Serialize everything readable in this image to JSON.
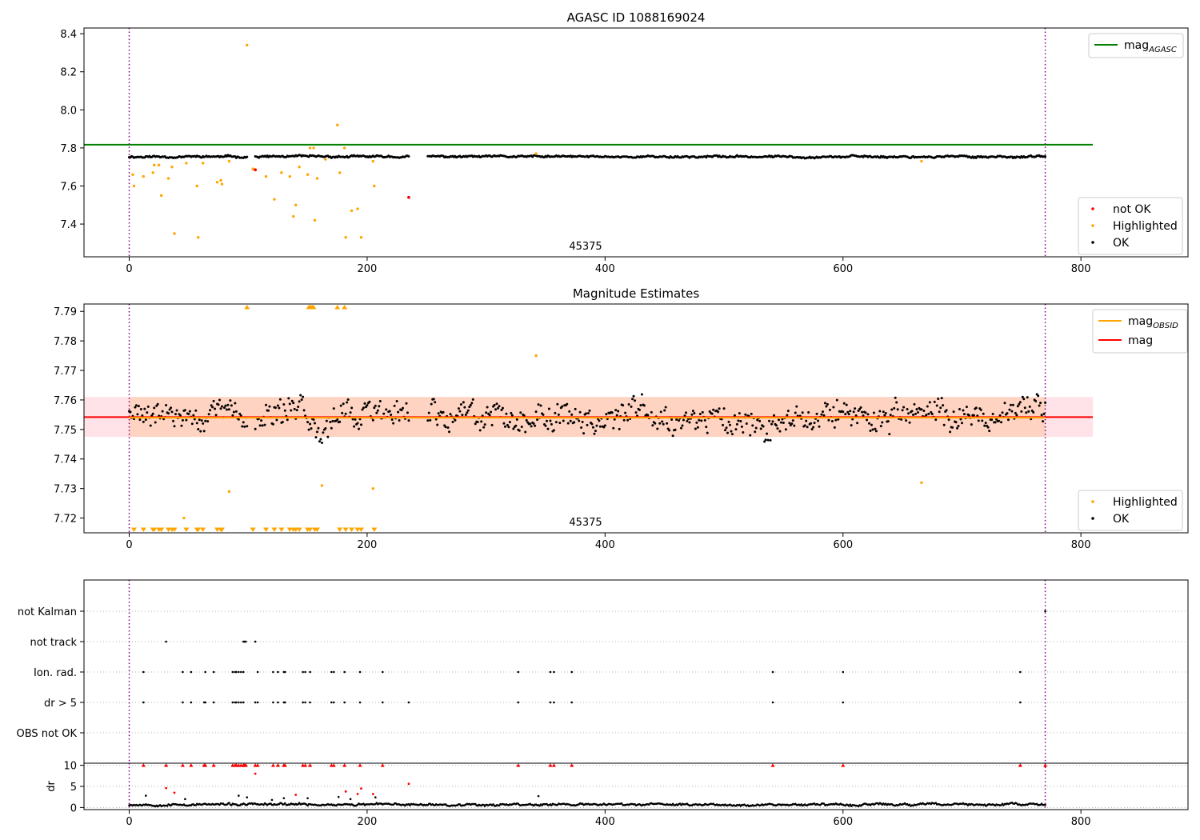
{
  "chart_data": [
    {
      "type": "scatter",
      "title": "AGASC ID 1088169024",
      "xlim": [
        -38,
        890
      ],
      "ylim": [
        7.228,
        8.43
      ],
      "xticks": [
        0,
        200,
        400,
        600,
        800
      ],
      "yticks": [
        7.4,
        7.6,
        7.8,
        8.0,
        8.2,
        8.4
      ],
      "ytick_labels": [
        "7.4",
        "7.6",
        "7.8",
        "8.0",
        "8.2",
        "8.4"
      ],
      "obsid_label": "45375",
      "obsid_label_x": 386,
      "obs_boundaries": [
        0,
        770
      ],
      "reference_line": {
        "name": "mag_AGASC",
        "y": 7.817,
        "x_range": [
          -38,
          810
        ],
        "color": "#008000"
      },
      "legend_lines": [
        {
          "label": "mag",
          "sub": "AGASC",
          "color": "#008000"
        }
      ],
      "legend_points": [
        {
          "label": "not OK",
          "color": "#ff0000"
        },
        {
          "label": "Highlighted",
          "color": "#ffa500"
        },
        {
          "label": "OK",
          "color": "#000000"
        }
      ],
      "ok_series": {
        "color": "#000000",
        "x_range": [
          0,
          770
        ],
        "baseline": 7.754,
        "noise": 0.007,
        "gaps": [
          [
            100,
            105
          ],
          [
            236,
            250
          ]
        ]
      },
      "highlighted_points": [
        [
          3,
          7.66
        ],
        [
          4,
          7.6
        ],
        [
          12,
          7.65
        ],
        [
          20,
          7.67
        ],
        [
          21,
          7.71
        ],
        [
          25,
          7.71
        ],
        [
          27,
          7.55
        ],
        [
          33,
          7.64
        ],
        [
          36,
          7.7
        ],
        [
          38,
          7.35
        ],
        [
          48,
          7.72
        ],
        [
          57,
          7.6
        ],
        [
          58,
          7.33
        ],
        [
          62,
          7.72
        ],
        [
          74,
          7.62
        ],
        [
          77,
          7.63
        ],
        [
          78,
          7.61
        ],
        [
          84,
          7.73
        ],
        [
          99,
          8.34
        ],
        [
          104,
          7.69
        ],
        [
          115,
          7.65
        ],
        [
          122,
          7.53
        ],
        [
          128,
          7.67
        ],
        [
          135,
          7.65
        ],
        [
          138,
          7.44
        ],
        [
          140,
          7.5
        ],
        [
          143,
          7.7
        ],
        [
          150,
          7.66
        ],
        [
          152,
          7.8
        ],
        [
          155,
          7.8
        ],
        [
          156,
          7.42
        ],
        [
          158,
          7.64
        ],
        [
          165,
          7.74
        ],
        [
          175,
          7.92
        ],
        [
          177,
          7.67
        ],
        [
          181,
          7.8
        ],
        [
          182,
          7.33
        ],
        [
          187,
          7.47
        ],
        [
          192,
          7.48
        ],
        [
          195,
          7.33
        ],
        [
          205,
          7.73
        ],
        [
          206,
          7.6
        ],
        [
          342,
          7.77
        ],
        [
          666,
          7.73
        ]
      ],
      "not_ok_points": [
        [
          106,
          7.685
        ],
        [
          235,
          7.54
        ]
      ]
    },
    {
      "type": "scatter",
      "title": "Magnitude Estimates",
      "xlim": [
        -38,
        890
      ],
      "ylim": [
        7.715,
        7.7925
      ],
      "xticks": [
        0,
        200,
        400,
        600,
        800
      ],
      "yticks": [
        7.72,
        7.73,
        7.74,
        7.75,
        7.76,
        7.77,
        7.78,
        7.79
      ],
      "ytick_labels": [
        "7.72",
        "7.73",
        "7.74",
        "7.75",
        "7.76",
        "7.77",
        "7.78",
        "7.79"
      ],
      "obsid_label": "45375",
      "obsid_label_x": 386,
      "obs_boundaries": [
        0,
        770
      ],
      "mag_line": {
        "name": "mag",
        "y": 7.7542,
        "color": "#ff0000"
      },
      "mag_obsid_line": {
        "name": "mag_OBSID",
        "y": 7.754,
        "color": "#ffa500"
      },
      "band_mag": {
        "y_range": [
          7.7475,
          7.761
        ],
        "x_range": [
          -38,
          810
        ],
        "color": "#ffc0cb"
      },
      "band_obsid": {
        "y_range": [
          7.7475,
          7.761
        ],
        "x_range": [
          0,
          770
        ],
        "color": "#ffc8a8"
      },
      "legend_lines": [
        {
          "label": "mag",
          "sub": "OBSID",
          "color": "#ffa500"
        },
        {
          "label": "mag",
          "sub": "",
          "color": "#ff0000"
        }
      ],
      "legend_points": [
        {
          "label": "Highlighted",
          "color": "#ffa500"
        },
        {
          "label": "OK",
          "color": "#000000"
        }
      ],
      "ok_series": {
        "color": "#000000",
        "x_range": [
          0,
          770
        ],
        "baseline": 7.7545,
        "noise": 0.0065,
        "gaps": [
          [
            100,
            105
          ],
          [
            236,
            250
          ]
        ]
      },
      "highlighted_points": [
        [
          84,
          7.729
        ],
        [
          46,
          7.72
        ],
        [
          162,
          7.731
        ],
        [
          205,
          7.73
        ],
        [
          342,
          7.775
        ],
        [
          666,
          7.732
        ]
      ],
      "clip_up_x": [
        99,
        151,
        152,
        153,
        154,
        155,
        175,
        181
      ],
      "clip_down_x": [
        4,
        12,
        20,
        21,
        25,
        27,
        33,
        36,
        38,
        48,
        57,
        58,
        62,
        74,
        77,
        78,
        104,
        115,
        122,
        128,
        135,
        138,
        140,
        143,
        150,
        152,
        156,
        158,
        177,
        182,
        187,
        192,
        195,
        206
      ]
    },
    {
      "type": "scatter",
      "title": "",
      "xlim": [
        -38,
        890
      ],
      "xticks": [
        0,
        200,
        400,
        600,
        800
      ],
      "obs_boundaries": [
        0,
        770
      ],
      "flag_rows": [
        "not Kalman",
        "not track",
        "Ion. rad.",
        "dr > 5",
        "OBS not OK"
      ],
      "flags": {
        "not Kalman": [
          770
        ],
        "not track": [
          31,
          96,
          97,
          98,
          106
        ],
        "Ion. rad.": [
          12,
          45,
          52,
          64,
          71,
          87,
          89,
          90,
          92,
          94,
          96,
          108,
          121,
          125,
          130,
          131,
          146,
          148,
          152,
          170,
          172,
          181,
          194,
          213,
          327,
          354,
          357,
          372,
          541,
          600,
          749
        ],
        "dr > 5": [
          12,
          45,
          52,
          63,
          64,
          71,
          87,
          89,
          90,
          92,
          94,
          96,
          106,
          108,
          121,
          125,
          130,
          131,
          146,
          148,
          152,
          170,
          172,
          181,
          194,
          213,
          235,
          327,
          354,
          357,
          372,
          541,
          600,
          749
        ],
        "OBS not OK": []
      },
      "dr_panel": {
        "ylabel": "dr",
        "ylim": [
          -0.5,
          10.5
        ],
        "yticks": [
          0,
          5,
          10
        ],
        "ytick_labels": [
          "0",
          "5",
          "10"
        ],
        "clip_y": 10,
        "clipped_x": [
          12,
          31,
          45,
          52,
          63,
          64,
          71,
          87,
          89,
          90,
          92,
          94,
          96,
          97,
          98,
          106,
          108,
          121,
          125,
          130,
          131,
          146,
          148,
          152,
          170,
          172,
          181,
          194,
          213,
          327,
          354,
          357,
          372,
          541,
          600,
          749,
          770
        ],
        "red_points": [
          [
            31,
            4.6
          ],
          [
            38,
            3.5
          ],
          [
            106,
            8.0
          ],
          [
            140,
            3.0
          ],
          [
            182,
            3.8
          ],
          [
            192,
            3.2
          ],
          [
            195,
            4.5
          ],
          [
            205,
            3.2
          ],
          [
            235,
            5.6
          ]
        ],
        "black_points": [
          [
            14,
            2.8
          ],
          [
            47,
            2.0
          ],
          [
            92,
            2.8
          ],
          [
            99,
            2.4
          ],
          [
            120,
            1.8
          ],
          [
            130,
            2.2
          ],
          [
            150,
            2.2
          ],
          [
            176,
            2.5
          ],
          [
            186,
            2.0
          ],
          [
            207,
            2.4
          ],
          [
            344,
            2.7
          ]
        ],
        "ok_series": {
          "color": "#000000",
          "x_range": [
            0,
            770
          ],
          "baseline": 0.7,
          "noise": 0.35
        }
      }
    }
  ]
}
